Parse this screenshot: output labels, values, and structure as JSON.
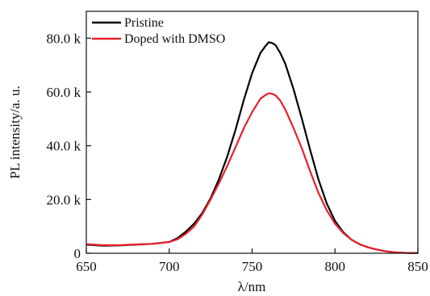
{
  "chart_data": {
    "type": "line",
    "title": "",
    "xlabel": "λ/nm",
    "ylabel": "PL intensity/a. u.",
    "xlim": [
      650,
      850
    ],
    "ylim": [
      0,
      90000
    ],
    "x_ticks": [
      {
        "value": 650,
        "label": "650"
      },
      {
        "value": 700,
        "label": "700"
      },
      {
        "value": 750,
        "label": "750"
      },
      {
        "value": 800,
        "label": "800"
      },
      {
        "value": 850,
        "label": "850"
      }
    ],
    "y_ticks": [
      {
        "value": 0,
        "label": "0"
      },
      {
        "value": 20000,
        "label": "20.0 k"
      },
      {
        "value": 40000,
        "label": "40.0 k"
      },
      {
        "value": 60000,
        "label": "60.0 k"
      },
      {
        "value": 80000,
        "label": "80.0 k"
      }
    ],
    "grid": false,
    "legend_position": "top-left",
    "series": [
      {
        "name": "Pristine",
        "color": "#000000",
        "x": [
          650,
          660,
          670,
          680,
          690,
          700,
          705,
          710,
          715,
          720,
          725,
          730,
          735,
          740,
          745,
          750,
          755,
          758,
          760,
          762,
          764,
          767,
          770,
          775,
          780,
          785,
          790,
          795,
          800,
          805,
          810,
          815,
          820,
          825,
          830,
          835,
          840,
          845,
          850
        ],
        "y": [
          3200,
          2800,
          2900,
          3200,
          3500,
          4200,
          5600,
          8000,
          11000,
          15000,
          20500,
          27500,
          36000,
          46000,
          57000,
          67000,
          74500,
          77000,
          78500,
          78200,
          77500,
          74500,
          70500,
          61000,
          50000,
          38500,
          27500,
          18500,
          12000,
          7800,
          5000,
          3300,
          2200,
          1400,
          800,
          400,
          200,
          100,
          50
        ]
      },
      {
        "name": "Doped with DMSO",
        "color": "#e8202a",
        "x": [
          650,
          660,
          670,
          680,
          690,
          700,
          705,
          710,
          715,
          720,
          725,
          730,
          735,
          740,
          745,
          750,
          755,
          758,
          760,
          762,
          764,
          767,
          770,
          775,
          780,
          785,
          790,
          795,
          800,
          805,
          810,
          815,
          820,
          825,
          830,
          835,
          840,
          845,
          850
        ],
        "y": [
          3400,
          3000,
          3000,
          3300,
          3500,
          4200,
          5200,
          7200,
          10000,
          14500,
          20000,
          26000,
          32500,
          39500,
          46500,
          52500,
          57500,
          58800,
          59500,
          59300,
          58800,
          56800,
          53500,
          46500,
          39000,
          30500,
          22500,
          16000,
          11000,
          7500,
          5000,
          3300,
          2200,
          1400,
          800,
          400,
          200,
          100,
          50
        ]
      }
    ]
  }
}
